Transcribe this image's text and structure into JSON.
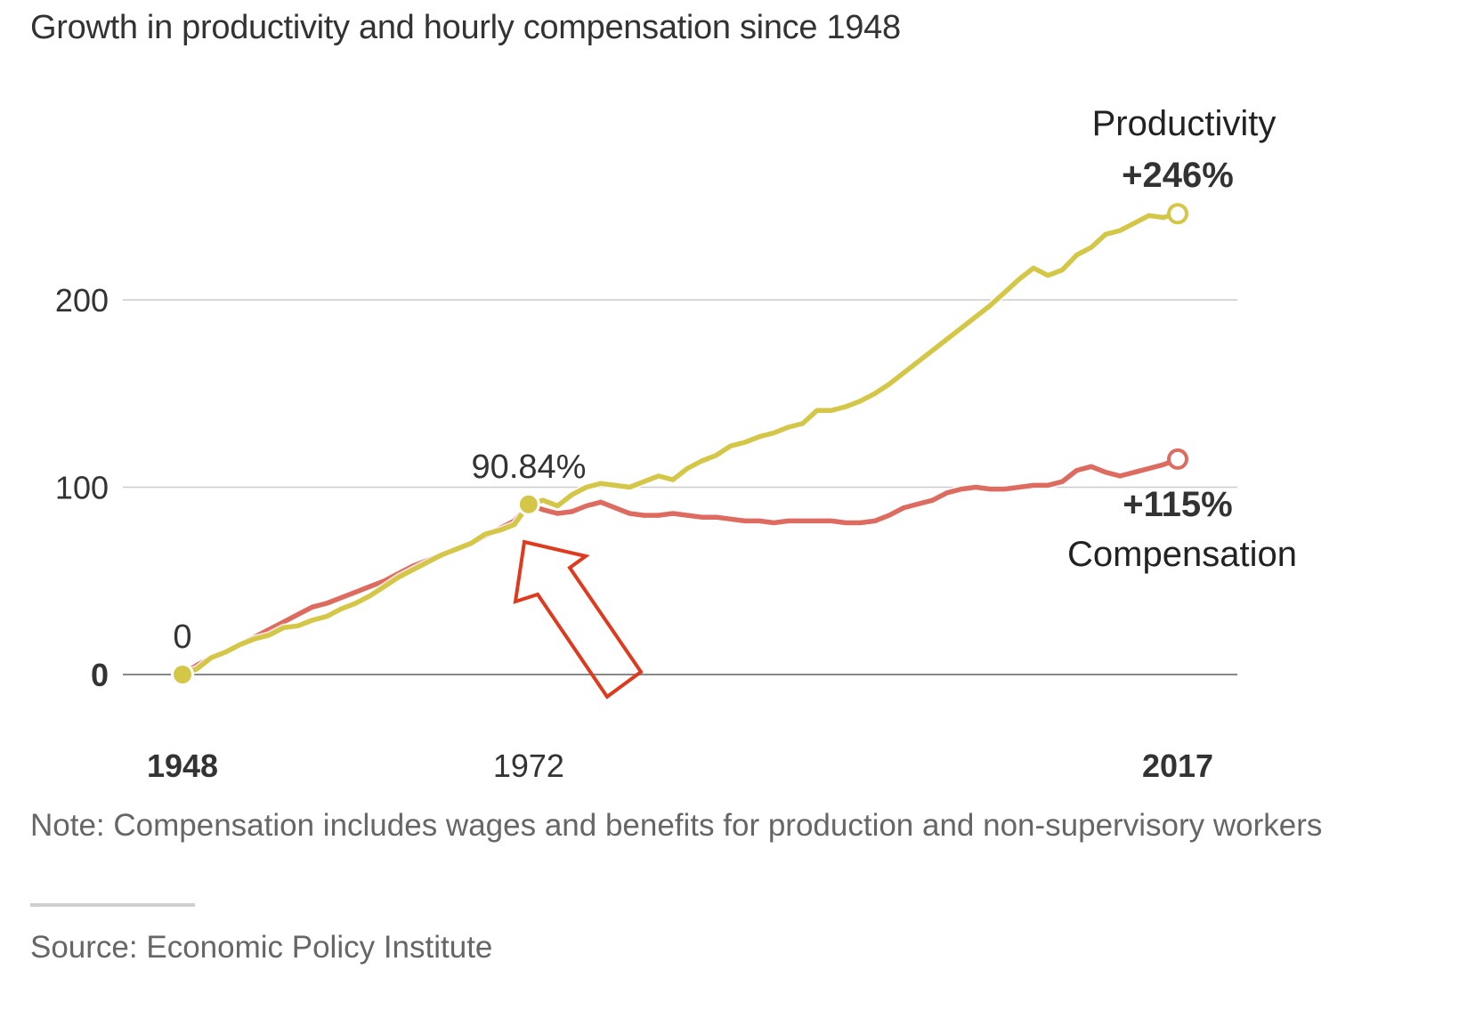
{
  "title": "Growth in productivity and hourly compensation since 1948",
  "note": "Note: Compensation includes wages and benefits for production and non-supervisory workers",
  "source": "Source: Economic Policy Institute",
  "colors": {
    "productivity": "#d4c748",
    "compensation": "#de6b60",
    "annotation_arrow": "#e03a1e",
    "gridline": "#cccccc",
    "baseline": "#888888",
    "text": "#222222"
  },
  "chart_data": {
    "type": "line",
    "title": "Growth in productivity and hourly compensation since 1948",
    "xlabel": "",
    "ylabel": "",
    "xlim": [
      1948,
      2017
    ],
    "ylim": [
      0,
      260
    ],
    "grid": true,
    "y_ticks": [
      {
        "value": 0,
        "label": "0",
        "bold": true
      },
      {
        "value": 100,
        "label": "100",
        "bold": false
      },
      {
        "value": 200,
        "label": "200",
        "bold": false
      }
    ],
    "x_ticks": [
      {
        "value": 1948,
        "label": "1948",
        "bold": true
      },
      {
        "value": 1972,
        "label": "1972",
        "bold": false
      },
      {
        "value": 2017,
        "label": "2017",
        "bold": true
      }
    ],
    "x": [
      1948,
      1949,
      1950,
      1951,
      1952,
      1953,
      1954,
      1955,
      1956,
      1957,
      1958,
      1959,
      1960,
      1961,
      1962,
      1963,
      1964,
      1965,
      1966,
      1967,
      1968,
      1969,
      1970,
      1971,
      1972,
      1973,
      1974,
      1975,
      1976,
      1977,
      1978,
      1979,
      1980,
      1981,
      1982,
      1983,
      1984,
      1985,
      1986,
      1987,
      1988,
      1989,
      1990,
      1991,
      1992,
      1993,
      1994,
      1995,
      1996,
      1997,
      1998,
      1999,
      2000,
      2001,
      2002,
      2003,
      2004,
      2005,
      2006,
      2007,
      2008,
      2009,
      2010,
      2011,
      2012,
      2013,
      2014,
      2015,
      2016,
      2017
    ],
    "series": [
      {
        "name": "Productivity",
        "label": "Productivity",
        "end_label": "+246%",
        "values": [
          0,
          3,
          9,
          12,
          16,
          19,
          21,
          25,
          26,
          29,
          31,
          35,
          38,
          42,
          47,
          52,
          56,
          60,
          64,
          67,
          70,
          75,
          77,
          80,
          90.84,
          93,
          90,
          96,
          100,
          102,
          101,
          100,
          103,
          106,
          104,
          110,
          114,
          117,
          122,
          124,
          127,
          129,
          132,
          134,
          141,
          141,
          143,
          146,
          150,
          155,
          161,
          167,
          173,
          179,
          185,
          191,
          197,
          204,
          211,
          217,
          213,
          216,
          224,
          228,
          235,
          237,
          241,
          245,
          244,
          246
        ]
      },
      {
        "name": "Compensation",
        "label": "Compensation",
        "end_label": "+115%",
        "values": [
          0,
          5,
          9,
          12,
          16,
          20,
          24,
          28,
          32,
          36,
          38,
          41,
          44,
          47,
          50,
          54,
          58,
          61,
          64,
          67,
          70,
          74,
          78,
          82,
          90.84,
          88,
          86,
          87,
          90,
          92,
          89,
          86,
          85,
          85,
          86,
          85,
          84,
          84,
          83,
          82,
          82,
          81,
          82,
          82,
          82,
          82,
          81,
          81,
          82,
          85,
          89,
          91,
          93,
          97,
          99,
          100,
          99,
          99,
          100,
          101,
          101,
          103,
          109,
          111,
          108,
          106,
          108,
          110,
          112,
          115
        ]
      }
    ],
    "annotations": [
      {
        "text": "0",
        "x": 1948,
        "y": 0,
        "marker": "filled-dot",
        "series": "Productivity"
      },
      {
        "text": "90.84%",
        "x": 1972,
        "y": 90.84,
        "marker": "filled-dot",
        "series": "Productivity"
      },
      {
        "text": "+246%",
        "x": 2017,
        "y": 246,
        "marker": "open-circle",
        "series": "Productivity"
      },
      {
        "text": "+115%",
        "x": 2017,
        "y": 115,
        "marker": "open-circle",
        "series": "Compensation"
      },
      {
        "text": "arrow pointing to 1972 divergence",
        "x": 1972,
        "y": 90.84,
        "marker": "hollow-arrow"
      }
    ],
    "legend": "inline-labels-right"
  }
}
